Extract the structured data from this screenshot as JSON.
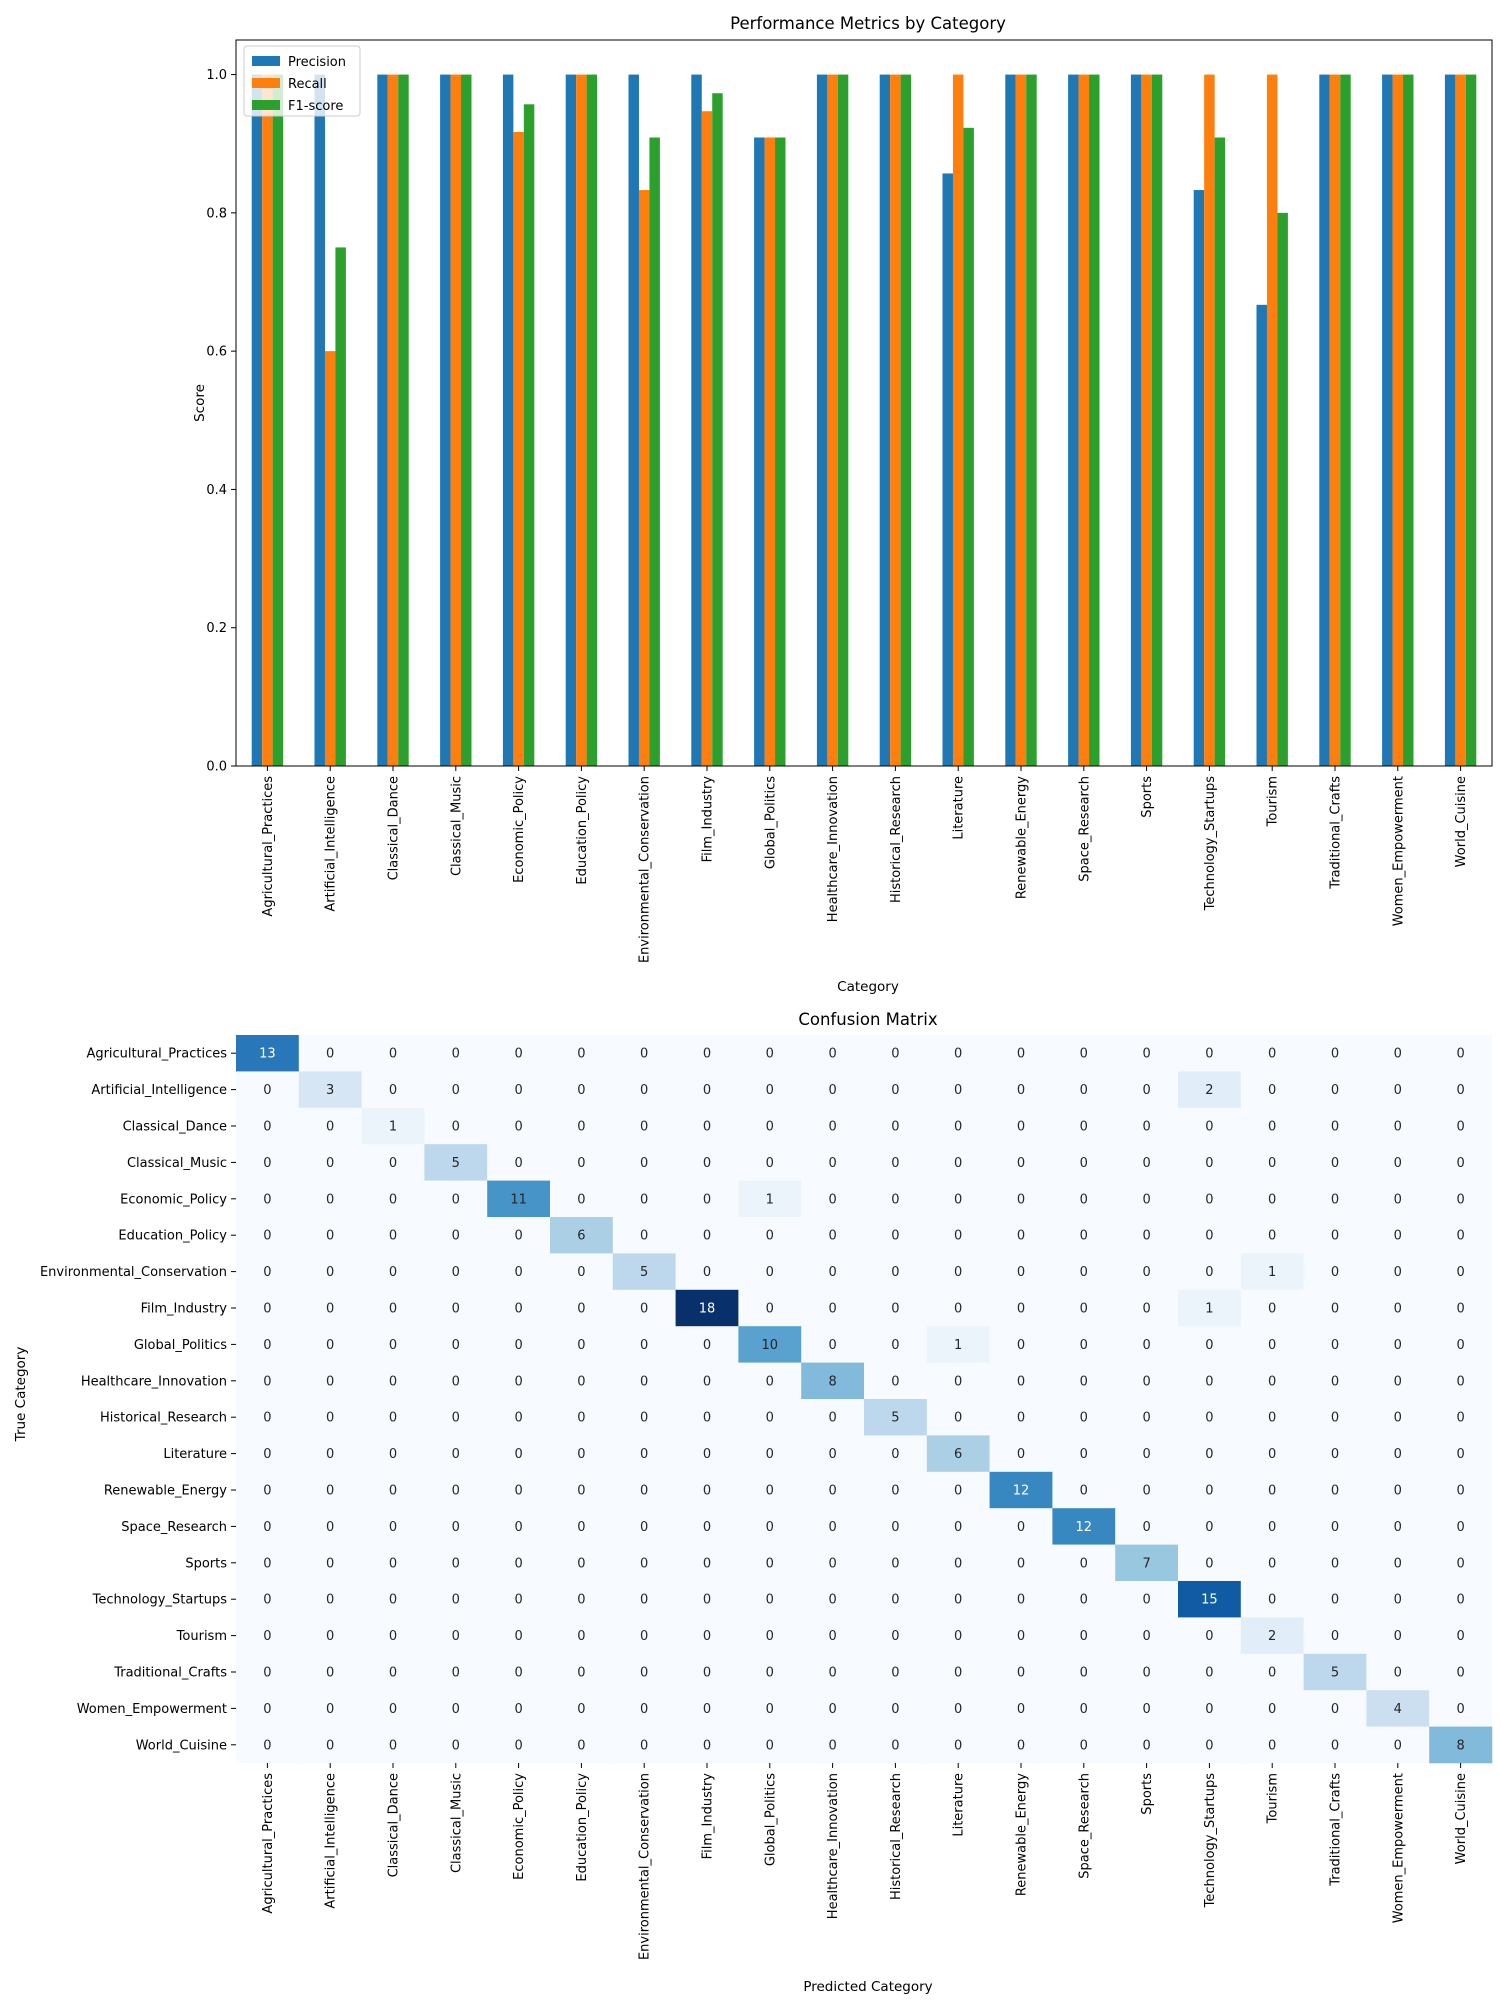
{
  "chart_data": [
    {
      "type": "bar",
      "title": "Performance Metrics by Category",
      "xlabel": "Category",
      "ylabel": "Score",
      "ylim": [
        0,
        1.05
      ],
      "yticks": [
        0.0,
        0.2,
        0.4,
        0.6,
        0.8,
        1.0
      ],
      "ytick_labels": [
        "0.0",
        "0.2",
        "0.4",
        "0.6",
        "0.8",
        "1.0"
      ],
      "grid": false,
      "legend_position": "top-left",
      "categories": [
        "Agricultural_Practices",
        "Artificial_Intelligence",
        "Classical_Dance",
        "Classical_Music",
        "Economic_Policy",
        "Education_Policy",
        "Environmental_Conservation",
        "Film_Industry",
        "Global_Politics",
        "Healthcare_Innovation",
        "Historical_Research",
        "Literature",
        "Renewable_Energy",
        "Space_Research",
        "Sports",
        "Technology_Startups",
        "Tourism",
        "Traditional_Crafts",
        "Women_Empowerment",
        "World_Cuisine"
      ],
      "series": [
        {
          "name": "Precision",
          "color": "#1f77b4",
          "values": [
            1.0,
            1.0,
            1.0,
            1.0,
            1.0,
            1.0,
            1.0,
            1.0,
            0.909,
            1.0,
            1.0,
            0.857,
            1.0,
            1.0,
            1.0,
            0.833,
            0.667,
            1.0,
            1.0,
            1.0
          ]
        },
        {
          "name": "Recall",
          "color": "#ff7f0e",
          "values": [
            1.0,
            0.6,
            1.0,
            1.0,
            0.917,
            1.0,
            0.833,
            0.947,
            0.909,
            1.0,
            1.0,
            1.0,
            1.0,
            1.0,
            1.0,
            1.0,
            1.0,
            1.0,
            1.0,
            1.0
          ]
        },
        {
          "name": "F1-score",
          "color": "#2ca02c",
          "values": [
            1.0,
            0.75,
            1.0,
            1.0,
            0.957,
            1.0,
            0.909,
            0.973,
            0.909,
            1.0,
            1.0,
            0.923,
            1.0,
            1.0,
            1.0,
            0.909,
            0.8,
            1.0,
            1.0,
            1.0
          ]
        }
      ]
    },
    {
      "type": "heatmap",
      "title": "Confusion Matrix",
      "xlabel": "Predicted Category",
      "ylabel": "True Category",
      "colormap": "Blues",
      "categories": [
        "Agricultural_Practices",
        "Artificial_Intelligence",
        "Classical_Dance",
        "Classical_Music",
        "Economic_Policy",
        "Education_Policy",
        "Environmental_Conservation",
        "Film_Industry",
        "Global_Politics",
        "Healthcare_Innovation",
        "Historical_Research",
        "Literature",
        "Renewable_Energy",
        "Space_Research",
        "Sports",
        "Technology_Startups",
        "Tourism",
        "Traditional_Crafts",
        "Women_Empowerment",
        "World_Cuisine"
      ],
      "matrix": [
        [
          13,
          0,
          0,
          0,
          0,
          0,
          0,
          0,
          0,
          0,
          0,
          0,
          0,
          0,
          0,
          0,
          0,
          0,
          0,
          0
        ],
        [
          0,
          3,
          0,
          0,
          0,
          0,
          0,
          0,
          0,
          0,
          0,
          0,
          0,
          0,
          0,
          2,
          0,
          0,
          0,
          0
        ],
        [
          0,
          0,
          1,
          0,
          0,
          0,
          0,
          0,
          0,
          0,
          0,
          0,
          0,
          0,
          0,
          0,
          0,
          0,
          0,
          0
        ],
        [
          0,
          0,
          0,
          5,
          0,
          0,
          0,
          0,
          0,
          0,
          0,
          0,
          0,
          0,
          0,
          0,
          0,
          0,
          0,
          0
        ],
        [
          0,
          0,
          0,
          0,
          11,
          0,
          0,
          0,
          1,
          0,
          0,
          0,
          0,
          0,
          0,
          0,
          0,
          0,
          0,
          0
        ],
        [
          0,
          0,
          0,
          0,
          0,
          6,
          0,
          0,
          0,
          0,
          0,
          0,
          0,
          0,
          0,
          0,
          0,
          0,
          0,
          0
        ],
        [
          0,
          0,
          0,
          0,
          0,
          0,
          5,
          0,
          0,
          0,
          0,
          0,
          0,
          0,
          0,
          0,
          1,
          0,
          0,
          0
        ],
        [
          0,
          0,
          0,
          0,
          0,
          0,
          0,
          18,
          0,
          0,
          0,
          0,
          0,
          0,
          0,
          1,
          0,
          0,
          0,
          0
        ],
        [
          0,
          0,
          0,
          0,
          0,
          0,
          0,
          0,
          10,
          0,
          0,
          1,
          0,
          0,
          0,
          0,
          0,
          0,
          0,
          0
        ],
        [
          0,
          0,
          0,
          0,
          0,
          0,
          0,
          0,
          0,
          8,
          0,
          0,
          0,
          0,
          0,
          0,
          0,
          0,
          0,
          0
        ],
        [
          0,
          0,
          0,
          0,
          0,
          0,
          0,
          0,
          0,
          0,
          5,
          0,
          0,
          0,
          0,
          0,
          0,
          0,
          0,
          0
        ],
        [
          0,
          0,
          0,
          0,
          0,
          0,
          0,
          0,
          0,
          0,
          0,
          6,
          0,
          0,
          0,
          0,
          0,
          0,
          0,
          0
        ],
        [
          0,
          0,
          0,
          0,
          0,
          0,
          0,
          0,
          0,
          0,
          0,
          0,
          12,
          0,
          0,
          0,
          0,
          0,
          0,
          0
        ],
        [
          0,
          0,
          0,
          0,
          0,
          0,
          0,
          0,
          0,
          0,
          0,
          0,
          0,
          12,
          0,
          0,
          0,
          0,
          0,
          0
        ],
        [
          0,
          0,
          0,
          0,
          0,
          0,
          0,
          0,
          0,
          0,
          0,
          0,
          0,
          0,
          7,
          0,
          0,
          0,
          0,
          0
        ],
        [
          0,
          0,
          0,
          0,
          0,
          0,
          0,
          0,
          0,
          0,
          0,
          0,
          0,
          0,
          0,
          15,
          0,
          0,
          0,
          0
        ],
        [
          0,
          0,
          0,
          0,
          0,
          0,
          0,
          0,
          0,
          0,
          0,
          0,
          0,
          0,
          0,
          0,
          2,
          0,
          0,
          0
        ],
        [
          0,
          0,
          0,
          0,
          0,
          0,
          0,
          0,
          0,
          0,
          0,
          0,
          0,
          0,
          0,
          0,
          0,
          5,
          0,
          0
        ],
        [
          0,
          0,
          0,
          0,
          0,
          0,
          0,
          0,
          0,
          0,
          0,
          0,
          0,
          0,
          0,
          0,
          0,
          0,
          4,
          0
        ],
        [
          0,
          0,
          0,
          0,
          0,
          0,
          0,
          0,
          0,
          0,
          0,
          0,
          0,
          0,
          0,
          0,
          0,
          0,
          0,
          8
        ]
      ]
    }
  ]
}
